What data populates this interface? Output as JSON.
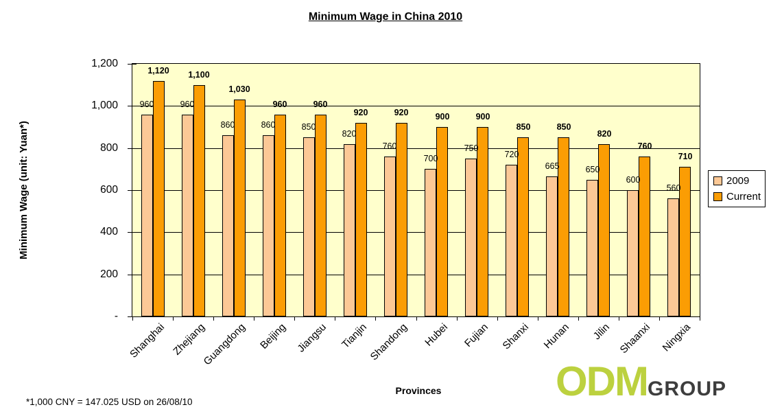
{
  "chart_data": {
    "type": "bar",
    "title": "Minimum Wage in China 2010",
    "xlabel": "Provinces",
    "ylabel": "Minimum Wage (unit: Yuan*)",
    "categories": [
      "Shanghai",
      "Zhejiang",
      "Guangdong",
      "Beijing",
      "Jiangsu",
      "Tianjin",
      "Shandong",
      "Hubei",
      "Fujian",
      "Shanxi",
      "Hunan",
      "Jilin",
      "Shaanxi",
      "Ningxia"
    ],
    "series": [
      {
        "name": "2009",
        "color": "#FCC896",
        "bold_labels": false,
        "values": [
          960,
          960,
          860,
          860,
          850,
          820,
          760,
          700,
          750,
          720,
          665,
          650,
          600,
          560
        ]
      },
      {
        "name": "Current",
        "color": "#FB9D04",
        "bold_labels": true,
        "values": [
          1120,
          1100,
          1030,
          960,
          960,
          920,
          920,
          900,
          900,
          850,
          850,
          820,
          760,
          710
        ]
      }
    ],
    "ylim": [
      0,
      1200
    ],
    "yticks": [
      {
        "label": "1,200",
        "value": 1200
      },
      {
        "label": "1,000",
        "value": 1000
      },
      {
        "label": "800",
        "value": 800
      },
      {
        "label": "600",
        "value": 600
      },
      {
        "label": "400",
        "value": 400
      },
      {
        "label": "200",
        "value": 200
      },
      {
        "label": "-",
        "value": 0
      }
    ],
    "grid": true,
    "data_labels": true,
    "plot_bg_color": "#FFFFCC",
    "legend": {
      "position": "right",
      "entries": [
        "2009",
        "Current"
      ]
    }
  },
  "footnote": "*1,000 CNY = 147.025 USD on 26/08/10",
  "logo": {
    "odm": "ODM",
    "group": "GROUP",
    "odm_color": "#BCD13F",
    "group_color": "#3D3D3D"
  }
}
